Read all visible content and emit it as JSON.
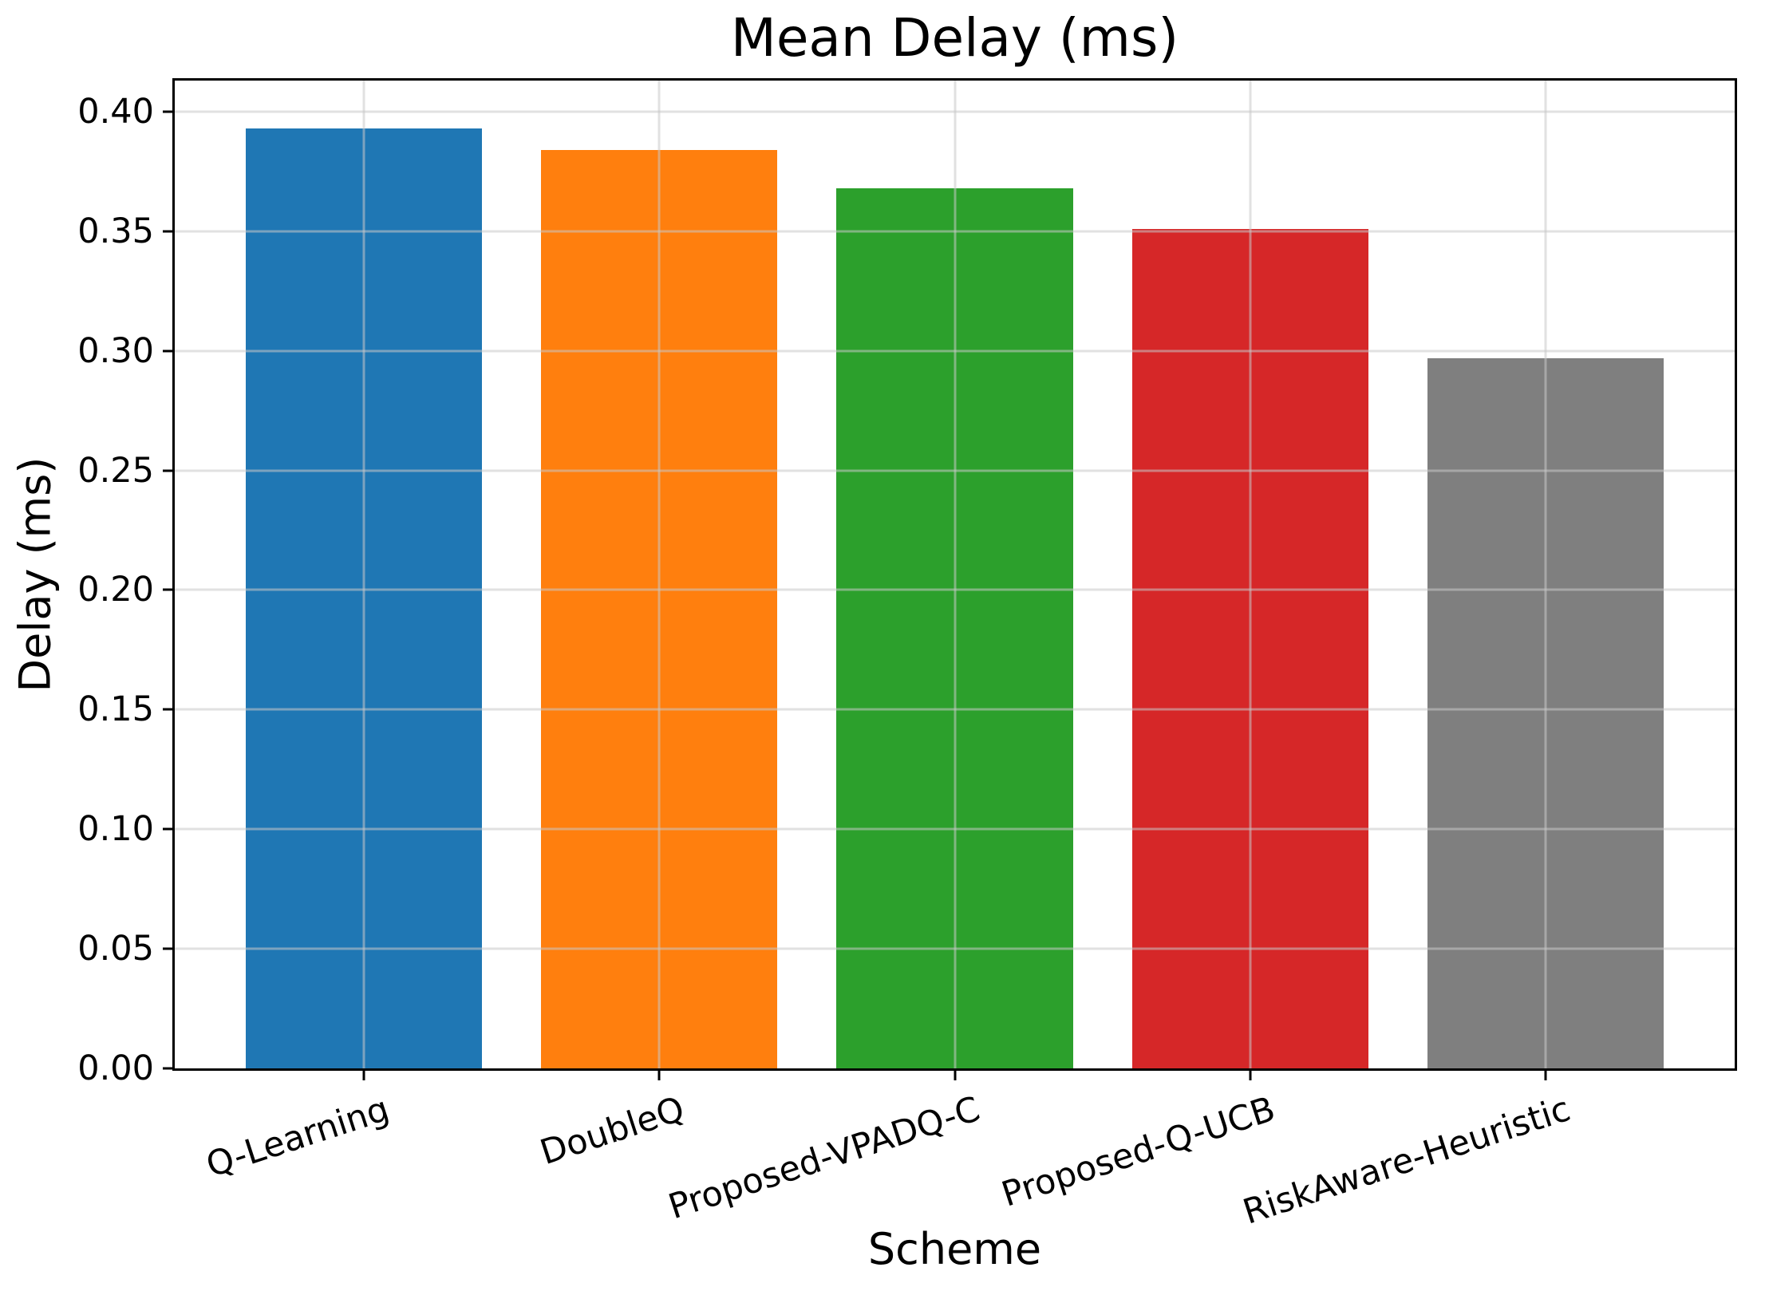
{
  "chart_data": {
    "type": "bar",
    "title": "Mean Delay (ms)",
    "xlabel": "Scheme",
    "ylabel": "Delay (ms)",
    "categories": [
      "Q-Learning",
      "DoubleQ",
      "Proposed-VPADQ-C",
      "Proposed-Q-UCB",
      "RiskAware-Heuristic"
    ],
    "values": [
      0.393,
      0.384,
      0.368,
      0.351,
      0.297
    ],
    "bar_colors": [
      "#1f77b4",
      "#ff7f0e",
      "#2ca02c",
      "#d62728",
      "#7f7f7f"
    ],
    "ylim": [
      0,
      0.413
    ],
    "yticks": [
      0.0,
      0.05,
      0.1,
      0.15,
      0.2,
      0.25,
      0.3,
      0.35,
      0.4
    ],
    "ytick_labels": [
      "0.00",
      "0.05",
      "0.10",
      "0.15",
      "0.20",
      "0.25",
      "0.30",
      "0.35",
      "0.40"
    ],
    "grid": true,
    "grid_on_top_of_bars": true,
    "legend": "none",
    "xtick_label_rotation_deg": 18
  }
}
